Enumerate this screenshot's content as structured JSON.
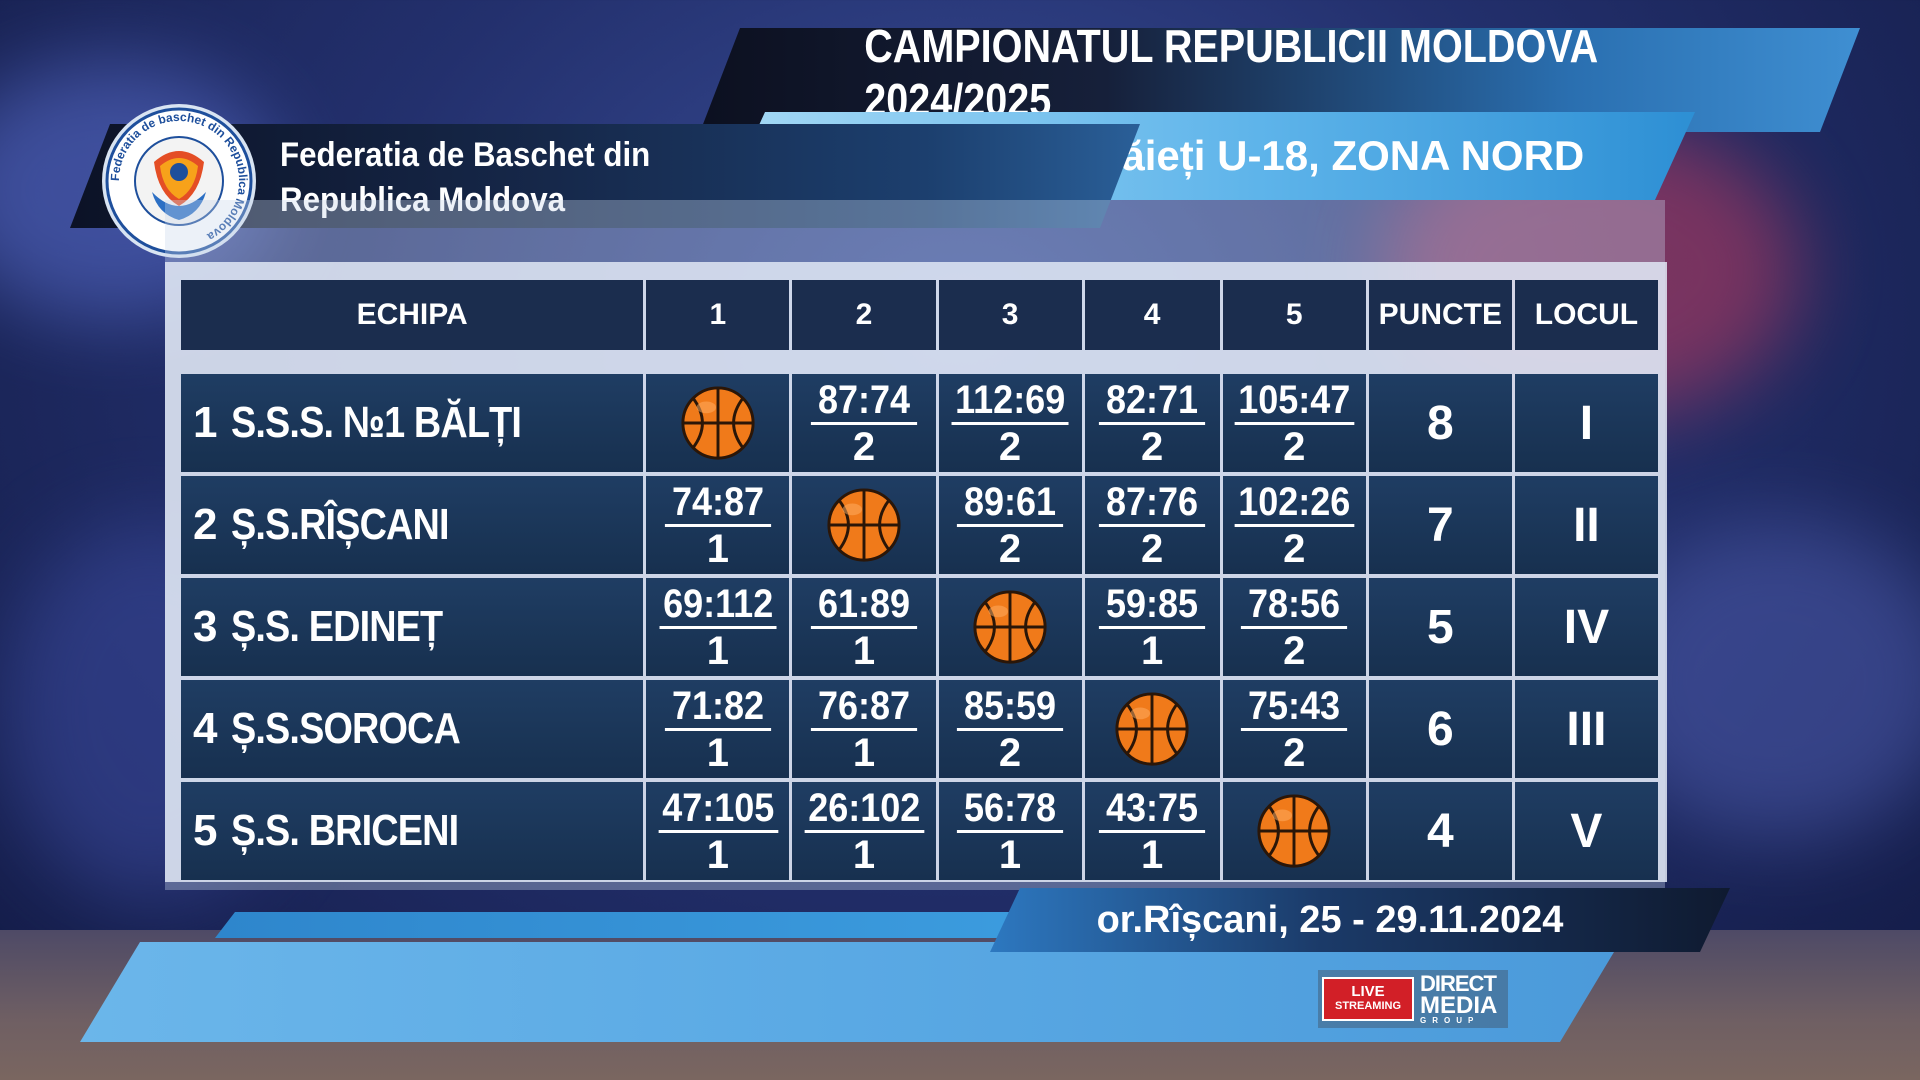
{
  "header": {
    "title": "CAMPIONATUL REPUBLICII MOLDOVA 2024/2025",
    "subtitle": "băieți U-18, ZONA NORD"
  },
  "federation": {
    "name_line1": "Federatia de Baschet din",
    "name_line2": "Republica Moldova",
    "logo_ring_text": "Federatia de baschet din Republica Moldova"
  },
  "table": {
    "columns": [
      "ECHIPA",
      "1",
      "2",
      "3",
      "4",
      "5",
      "PUNCTE",
      "LOCUL"
    ],
    "rows": [
      {
        "num": "1",
        "team": "S.S.S. №1 BĂLȚI",
        "results": [
          null,
          {
            "score": "87:74",
            "pts": "2"
          },
          {
            "score": "112:69",
            "pts": "2"
          },
          {
            "score": "82:71",
            "pts": "2"
          },
          {
            "score": "105:47",
            "pts": "2"
          }
        ],
        "puncte": "8",
        "locul": "I"
      },
      {
        "num": "2",
        "team": "Ș.S.RÎȘCANI",
        "results": [
          {
            "score": "74:87",
            "pts": "1"
          },
          null,
          {
            "score": "89:61",
            "pts": "2"
          },
          {
            "score": "87:76",
            "pts": "2"
          },
          {
            "score": "102:26",
            "pts": "2"
          }
        ],
        "puncte": "7",
        "locul": "II"
      },
      {
        "num": "3",
        "team": "Ș.S. EDINEȚ",
        "results": [
          {
            "score": "69:112",
            "pts": "1"
          },
          {
            "score": "61:89",
            "pts": "1"
          },
          null,
          {
            "score": "59:85",
            "pts": "1"
          },
          {
            "score": "78:56",
            "pts": "2"
          }
        ],
        "puncte": "5",
        "locul": "IV"
      },
      {
        "num": "4",
        "team": "Ș.S.SOROCA",
        "results": [
          {
            "score": "71:82",
            "pts": "1"
          },
          {
            "score": "76:87",
            "pts": "1"
          },
          {
            "score": "85:59",
            "pts": "2"
          },
          null,
          {
            "score": "75:43",
            "pts": "2"
          }
        ],
        "puncte": "6",
        "locul": "III"
      },
      {
        "num": "5",
        "team": "Ș.S. BRICENI",
        "results": [
          {
            "score": "47:105",
            "pts": "1"
          },
          {
            "score": "26:102",
            "pts": "1"
          },
          {
            "score": "56:78",
            "pts": "1"
          },
          {
            "score": "43:75",
            "pts": "1"
          },
          null
        ],
        "puncte": "4",
        "locul": "V"
      }
    ],
    "self_match_icon": "basketball-icon"
  },
  "footer": {
    "location_date": "or.Rîșcani, 25 - 29.11.2024"
  },
  "sponsor": {
    "live_line1": "LIVE",
    "live_line2": "STREAMING",
    "brand_line1": "DIRECT",
    "brand_line2": "MEDIA",
    "brand_line3": "GROUP"
  },
  "colors": {
    "header_dark": "#16203a",
    "accent_blue": "#3f8fd2",
    "light_blue": "#a5d9f5",
    "cell_navy": "#1b2d4e",
    "ball_orange": "#f07a1a",
    "live_red": "#d21f27"
  }
}
